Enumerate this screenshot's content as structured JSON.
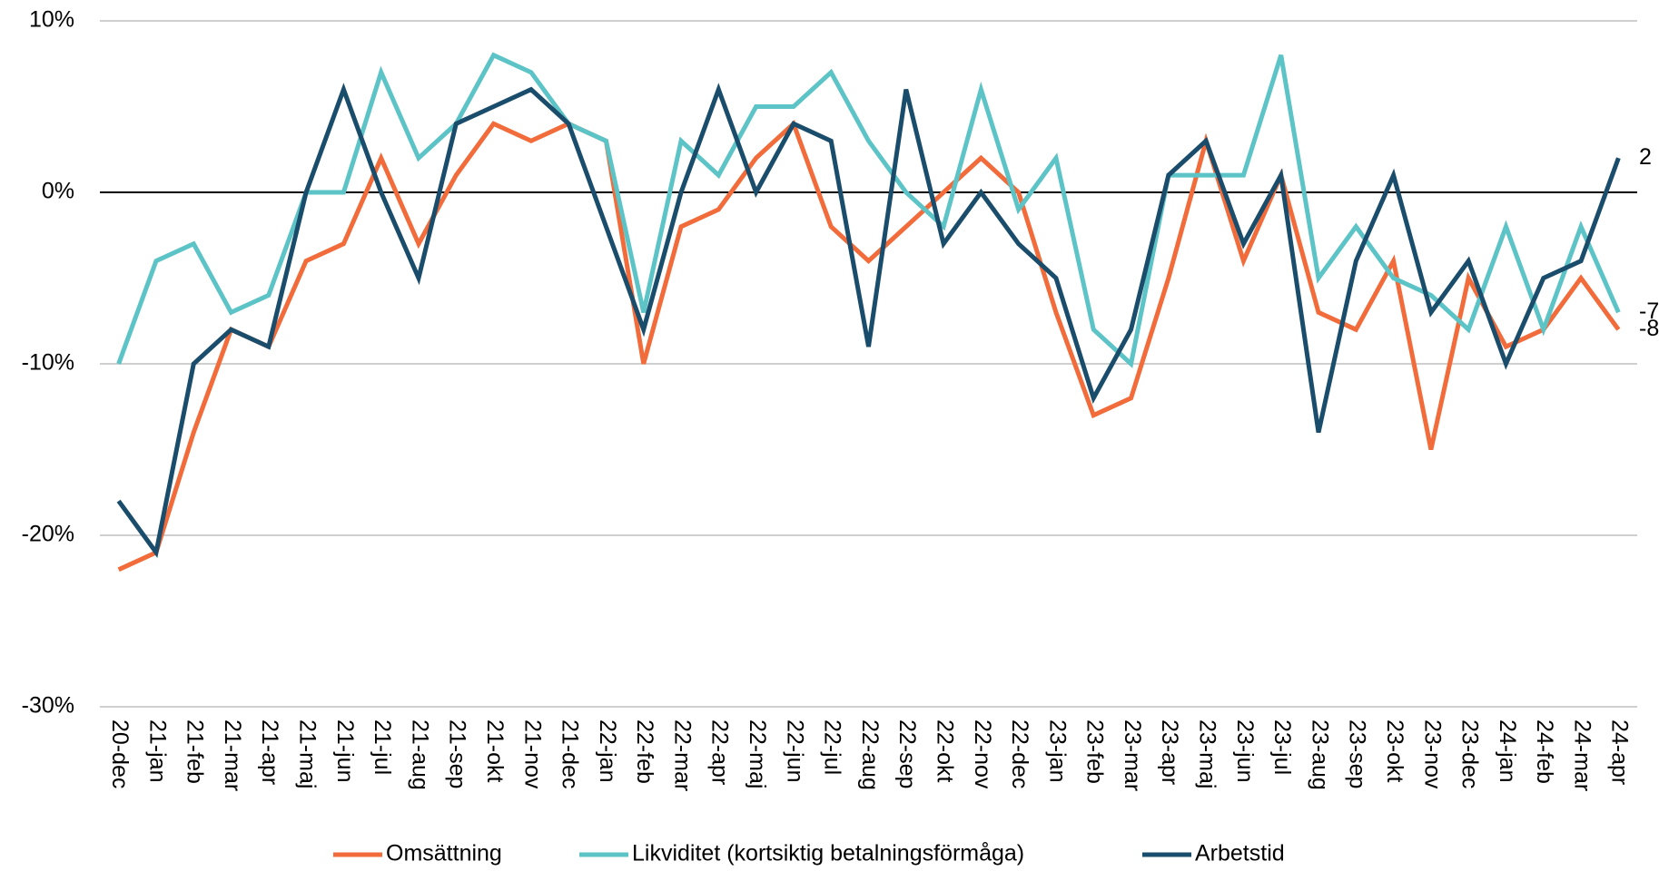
{
  "chart_data": {
    "type": "line",
    "categories": [
      "20-dec",
      "21-jan",
      "21-feb",
      "21-mar",
      "21-apr",
      "21-maj",
      "21-jun",
      "21-jul",
      "21-aug",
      "21-sep",
      "21-okt",
      "21-nov",
      "21-dec",
      "22-jan",
      "22-feb",
      "22-mar",
      "22-apr",
      "22-maj",
      "22-jun",
      "22-jul",
      "22-aug",
      "22-sep",
      "22-okt",
      "22-nov",
      "22-dec",
      "23-jan",
      "23-feb",
      "23-mar",
      "23-apr",
      "23-maj",
      "23-jun",
      "23-jul",
      "23-aug",
      "23-sep",
      "23-okt",
      "23-nov",
      "23-dec",
      "24-jan",
      "24-feb",
      "24-mar",
      "24-apr"
    ],
    "series": [
      {
        "name": "Omsättning",
        "color": "#f26b3a",
        "values": [
          -22,
          -21,
          -14,
          -8,
          -9,
          -4,
          -3,
          2,
          -3,
          1,
          4,
          3,
          4,
          3,
          -10,
          -2,
          -1,
          2,
          4,
          -2,
          -4,
          -2,
          0,
          2,
          0,
          -7,
          -13,
          -12,
          -5,
          3,
          -4,
          1,
          -7,
          -8,
          -4,
          -15,
          -5,
          -9,
          -8,
          -5,
          -8
        ]
      },
      {
        "name": "Likviditet (kortsiktig betalningsförmåga)",
        "color": "#5cc3c6",
        "values": [
          -10,
          -4,
          -3,
          -7,
          -6,
          0,
          0,
          7,
          2,
          4,
          8,
          7,
          4,
          3,
          -7,
          3,
          1,
          5,
          5,
          7,
          3,
          0,
          -2,
          6,
          -1,
          2,
          -8,
          -10,
          1,
          1,
          1,
          8,
          -5,
          -2,
          -5,
          -6,
          -8,
          -2,
          -8,
          -2,
          -7
        ]
      },
      {
        "name": "Arbetstid",
        "color": "#1a4d6b",
        "values": [
          -18,
          -21,
          -10,
          -8,
          -9,
          0,
          6,
          0,
          -5,
          4,
          5,
          6,
          4,
          -2,
          -8,
          0,
          6,
          0,
          4,
          3,
          -9,
          6,
          -3,
          0,
          -3,
          -5,
          -12,
          -8,
          1,
          3,
          -3,
          1,
          -14,
          -4,
          1,
          -7,
          -4,
          -10,
          -5,
          -4,
          2
        ]
      }
    ],
    "ylim": [
      -30,
      10
    ],
    "yticks": [
      {
        "value": -30,
        "label": "-30%"
      },
      {
        "value": -20,
        "label": "-20%"
      },
      {
        "value": -10,
        "label": "-10%"
      },
      {
        "value": 0,
        "label": "0%"
      },
      {
        "value": 10,
        "label": "10%"
      }
    ],
    "grid": true,
    "last_value_labels": true,
    "legend": "bottom"
  }
}
